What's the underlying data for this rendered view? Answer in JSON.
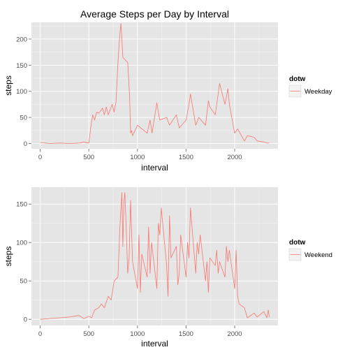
{
  "chart_data": [
    {
      "type": "line",
      "title": "Average Steps per Day by Interval",
      "xlabel": "interval",
      "ylabel": "steps",
      "xlim": [
        -90,
        2445
      ],
      "ylim": [
        -10,
        232
      ],
      "xticks": [
        0,
        500,
        1000,
        1500,
        2000
      ],
      "yticks": [
        0,
        50,
        100,
        150,
        200
      ],
      "grid": true,
      "legend": {
        "title": "dotw",
        "position": "right"
      },
      "series": [
        {
          "name": "Weekday",
          "color": "#f8766d",
          "x": [
            0,
            100,
            200,
            300,
            400,
            450,
            500,
            520,
            540,
            560,
            580,
            600,
            620,
            640,
            660,
            680,
            700,
            720,
            740,
            760,
            780,
            800,
            810,
            820,
            830,
            840,
            850,
            900,
            920,
            930,
            940,
            950,
            1000,
            1100,
            1130,
            1150,
            1200,
            1215,
            1230,
            1300,
            1330,
            1400,
            1430,
            1500,
            1530,
            1545,
            1600,
            1630,
            1700,
            1730,
            1745,
            1800,
            1830,
            1845,
            1900,
            1930,
            1945,
            2000,
            2030,
            2100,
            2130,
            2200,
            2230,
            2300,
            2330,
            2355
          ],
          "y": [
            2,
            0,
            1,
            0,
            1,
            3,
            1,
            30,
            55,
            45,
            60,
            58,
            62,
            68,
            55,
            70,
            55,
            65,
            75,
            60,
            80,
            155,
            185,
            210,
            230,
            200,
            165,
            155,
            90,
            20,
            25,
            15,
            35,
            20,
            45,
            20,
            78,
            60,
            45,
            50,
            35,
            55,
            30,
            45,
            75,
            95,
            35,
            50,
            35,
            82,
            70,
            55,
            95,
            115,
            75,
            105,
            75,
            20,
            28,
            5,
            15,
            12,
            5,
            3,
            1,
            1
          ]
        }
      ]
    },
    {
      "type": "line",
      "title": "",
      "xlabel": "interval",
      "ylabel": "steps",
      "xlim": [
        -90,
        2445
      ],
      "ylim": [
        -8,
        172
      ],
      "xticks": [
        0,
        500,
        1000,
        1500,
        2000
      ],
      "yticks": [
        0,
        50,
        100,
        150
      ],
      "grid": true,
      "legend": {
        "title": "dotw",
        "position": "right"
      },
      "series": [
        {
          "name": "Weekend",
          "color": "#f8766d",
          "x": [
            0,
            100,
            200,
            300,
            400,
            450,
            500,
            530,
            560,
            600,
            630,
            660,
            700,
            730,
            760,
            800,
            820,
            840,
            850,
            860,
            870,
            880,
            900,
            915,
            930,
            950,
            1000,
            1015,
            1030,
            1045,
            1100,
            1115,
            1130,
            1145,
            1200,
            1215,
            1230,
            1245,
            1300,
            1315,
            1330,
            1345,
            1400,
            1415,
            1430,
            1445,
            1500,
            1515,
            1530,
            1545,
            1600,
            1615,
            1630,
            1645,
            1700,
            1715,
            1730,
            1745,
            1800,
            1815,
            1830,
            1845,
            1900,
            1915,
            1930,
            1945,
            2000,
            2015,
            2030,
            2045,
            2100,
            2130,
            2200,
            2230,
            2300,
            2330,
            2345,
            2355
          ],
          "y": [
            0,
            1,
            2,
            3,
            5,
            1,
            4,
            2,
            12,
            15,
            20,
            15,
            30,
            25,
            50,
            55,
            120,
            165,
            95,
            150,
            165,
            135,
            60,
            80,
            155,
            75,
            40,
            110,
            35,
            85,
            55,
            120,
            60,
            100,
            40,
            125,
            110,
            145,
            70,
            30,
            135,
            80,
            95,
            45,
            60,
            110,
            55,
            100,
            80,
            145,
            60,
            100,
            85,
            110,
            50,
            75,
            35,
            80,
            70,
            90,
            60,
            75,
            55,
            95,
            75,
            90,
            40,
            90,
            30,
            20,
            15,
            2,
            8,
            3,
            10,
            2,
            12,
            3
          ]
        }
      ]
    }
  ]
}
